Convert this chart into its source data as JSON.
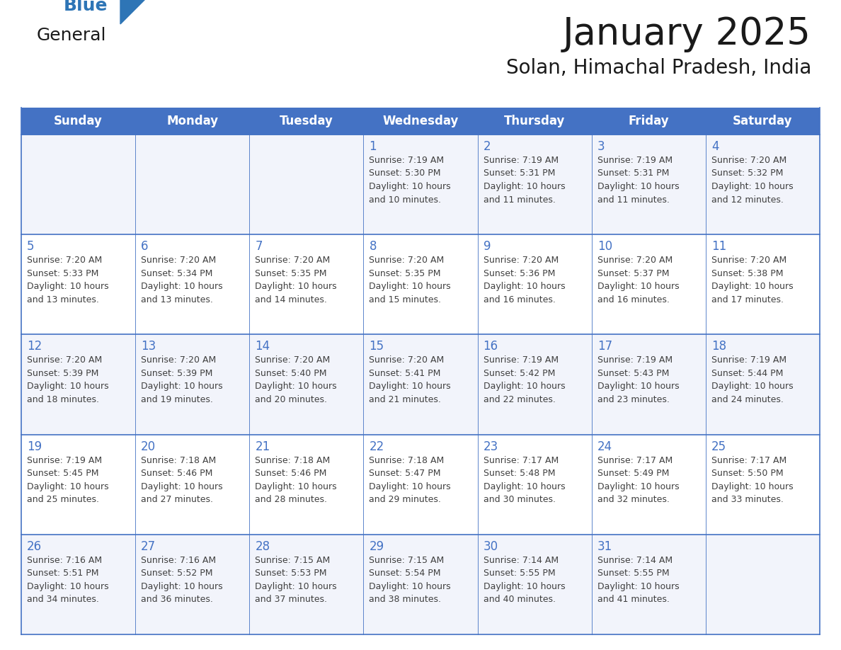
{
  "title": "January 2025",
  "subtitle": "Solan, Himachal Pradesh, India",
  "header_color": "#4472C4",
  "header_text_color": "#FFFFFF",
  "day_names": [
    "Sunday",
    "Monday",
    "Tuesday",
    "Wednesday",
    "Thursday",
    "Friday",
    "Saturday"
  ],
  "background_color": "#FFFFFF",
  "cell_border_color": "#4472C4",
  "day_num_color": "#4472C4",
  "text_color": "#404040",
  "row_colors": [
    "#F2F4FB",
    "#FFFFFF",
    "#F2F4FB",
    "#FFFFFF",
    "#F2F4FB"
  ],
  "weeks": [
    [
      {
        "day": null,
        "sunrise": null,
        "sunset": null,
        "daylight": null
      },
      {
        "day": null,
        "sunrise": null,
        "sunset": null,
        "daylight": null
      },
      {
        "day": null,
        "sunrise": null,
        "sunset": null,
        "daylight": null
      },
      {
        "day": 1,
        "sunrise": "7:19 AM",
        "sunset": "5:30 PM",
        "daylight": "10 hours\nand 10 minutes."
      },
      {
        "day": 2,
        "sunrise": "7:19 AM",
        "sunset": "5:31 PM",
        "daylight": "10 hours\nand 11 minutes."
      },
      {
        "day": 3,
        "sunrise": "7:19 AM",
        "sunset": "5:31 PM",
        "daylight": "10 hours\nand 11 minutes."
      },
      {
        "day": 4,
        "sunrise": "7:20 AM",
        "sunset": "5:32 PM",
        "daylight": "10 hours\nand 12 minutes."
      }
    ],
    [
      {
        "day": 5,
        "sunrise": "7:20 AM",
        "sunset": "5:33 PM",
        "daylight": "10 hours\nand 13 minutes."
      },
      {
        "day": 6,
        "sunrise": "7:20 AM",
        "sunset": "5:34 PM",
        "daylight": "10 hours\nand 13 minutes."
      },
      {
        "day": 7,
        "sunrise": "7:20 AM",
        "sunset": "5:35 PM",
        "daylight": "10 hours\nand 14 minutes."
      },
      {
        "day": 8,
        "sunrise": "7:20 AM",
        "sunset": "5:35 PM",
        "daylight": "10 hours\nand 15 minutes."
      },
      {
        "day": 9,
        "sunrise": "7:20 AM",
        "sunset": "5:36 PM",
        "daylight": "10 hours\nand 16 minutes."
      },
      {
        "day": 10,
        "sunrise": "7:20 AM",
        "sunset": "5:37 PM",
        "daylight": "10 hours\nand 16 minutes."
      },
      {
        "day": 11,
        "sunrise": "7:20 AM",
        "sunset": "5:38 PM",
        "daylight": "10 hours\nand 17 minutes."
      }
    ],
    [
      {
        "day": 12,
        "sunrise": "7:20 AM",
        "sunset": "5:39 PM",
        "daylight": "10 hours\nand 18 minutes."
      },
      {
        "day": 13,
        "sunrise": "7:20 AM",
        "sunset": "5:39 PM",
        "daylight": "10 hours\nand 19 minutes."
      },
      {
        "day": 14,
        "sunrise": "7:20 AM",
        "sunset": "5:40 PM",
        "daylight": "10 hours\nand 20 minutes."
      },
      {
        "day": 15,
        "sunrise": "7:20 AM",
        "sunset": "5:41 PM",
        "daylight": "10 hours\nand 21 minutes."
      },
      {
        "day": 16,
        "sunrise": "7:19 AM",
        "sunset": "5:42 PM",
        "daylight": "10 hours\nand 22 minutes."
      },
      {
        "day": 17,
        "sunrise": "7:19 AM",
        "sunset": "5:43 PM",
        "daylight": "10 hours\nand 23 minutes."
      },
      {
        "day": 18,
        "sunrise": "7:19 AM",
        "sunset": "5:44 PM",
        "daylight": "10 hours\nand 24 minutes."
      }
    ],
    [
      {
        "day": 19,
        "sunrise": "7:19 AM",
        "sunset": "5:45 PM",
        "daylight": "10 hours\nand 25 minutes."
      },
      {
        "day": 20,
        "sunrise": "7:18 AM",
        "sunset": "5:46 PM",
        "daylight": "10 hours\nand 27 minutes."
      },
      {
        "day": 21,
        "sunrise": "7:18 AM",
        "sunset": "5:46 PM",
        "daylight": "10 hours\nand 28 minutes."
      },
      {
        "day": 22,
        "sunrise": "7:18 AM",
        "sunset": "5:47 PM",
        "daylight": "10 hours\nand 29 minutes."
      },
      {
        "day": 23,
        "sunrise": "7:17 AM",
        "sunset": "5:48 PM",
        "daylight": "10 hours\nand 30 minutes."
      },
      {
        "day": 24,
        "sunrise": "7:17 AM",
        "sunset": "5:49 PM",
        "daylight": "10 hours\nand 32 minutes."
      },
      {
        "day": 25,
        "sunrise": "7:17 AM",
        "sunset": "5:50 PM",
        "daylight": "10 hours\nand 33 minutes."
      }
    ],
    [
      {
        "day": 26,
        "sunrise": "7:16 AM",
        "sunset": "5:51 PM",
        "daylight": "10 hours\nand 34 minutes."
      },
      {
        "day": 27,
        "sunrise": "7:16 AM",
        "sunset": "5:52 PM",
        "daylight": "10 hours\nand 36 minutes."
      },
      {
        "day": 28,
        "sunrise": "7:15 AM",
        "sunset": "5:53 PM",
        "daylight": "10 hours\nand 37 minutes."
      },
      {
        "day": 29,
        "sunrise": "7:15 AM",
        "sunset": "5:54 PM",
        "daylight": "10 hours\nand 38 minutes."
      },
      {
        "day": 30,
        "sunrise": "7:14 AM",
        "sunset": "5:55 PM",
        "daylight": "10 hours\nand 40 minutes."
      },
      {
        "day": 31,
        "sunrise": "7:14 AM",
        "sunset": "5:55 PM",
        "daylight": "10 hours\nand 41 minutes."
      },
      {
        "day": null,
        "sunrise": null,
        "sunset": null,
        "daylight": null
      }
    ]
  ],
  "logo_general_color": "#1a1a1a",
  "logo_blue_color": "#2E75B6",
  "logo_triangle_color": "#2E75B6"
}
